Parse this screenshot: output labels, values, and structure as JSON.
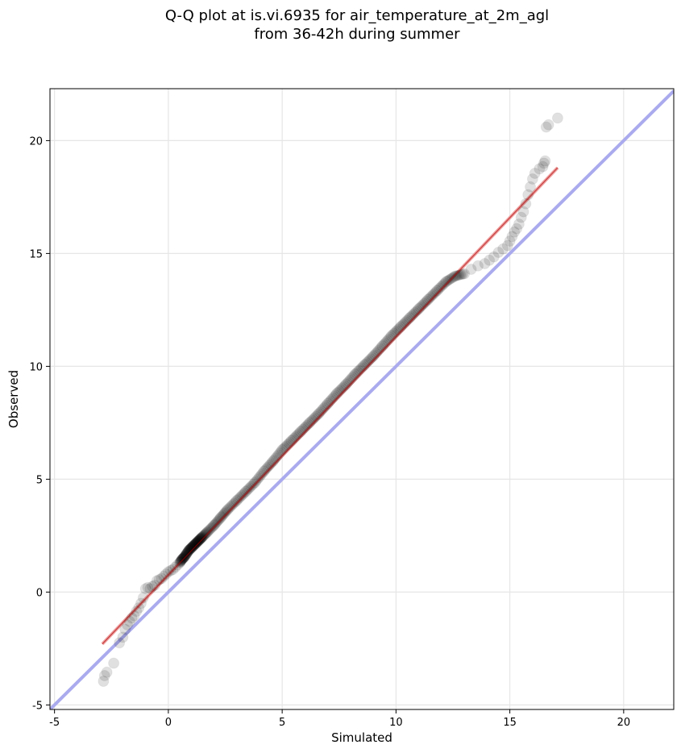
{
  "chart_data": {
    "type": "scatter",
    "title": "Q-Q plot at is.vi.6935 for air_temperature_at_2m_agl",
    "subtitle": "from 36-42h during summer",
    "xlabel": "Simulated",
    "ylabel": "Observed",
    "xlim": [
      -5.2,
      22.2
    ],
    "ylim": [
      -5.2,
      22.3
    ],
    "xticks": [
      -5,
      0,
      5,
      10,
      15,
      20
    ],
    "yticks": [
      -5,
      0,
      5,
      10,
      15,
      20
    ],
    "grid": true,
    "reference_line": {
      "x": [
        -5.2,
        22.2
      ],
      "y": [
        -5.2,
        22.2
      ],
      "color": "#aaaaee"
    },
    "fit_line": {
      "x": [
        -2.9,
        17.1
      ],
      "y": [
        -2.3,
        18.8
      ],
      "color": "#f0a0a0"
    },
    "colors": {
      "points": "#000000",
      "fit_line_core": "#aa0000"
    },
    "points": {
      "x": [
        -2.85,
        -2.8,
        -2.7,
        -2.4,
        -2.15,
        -2.0,
        -1.9,
        -1.8,
        -1.7,
        -1.6,
        -1.5,
        -1.4,
        -1.3,
        -1.2,
        -1.1,
        -1.0,
        -0.9,
        -0.8,
        -0.7,
        -0.6,
        -0.5,
        -0.4,
        -0.3,
        -0.2,
        -0.1,
        0.0,
        0.1,
        0.2,
        0.3,
        0.4,
        0.5,
        0.6,
        0.7,
        0.8,
        0.9,
        1.0,
        1.1,
        1.2,
        1.3,
        1.4,
        1.5,
        1.7,
        2.0,
        2.3,
        2.6,
        3.0,
        3.4,
        3.8,
        4.2,
        4.6,
        5.0,
        5.4,
        5.8,
        6.2,
        6.6,
        7.0,
        7.4,
        7.8,
        8.2,
        8.6,
        9.0,
        9.4,
        9.8,
        10.2,
        10.6,
        11.0,
        11.4,
        11.8,
        12.2,
        12.6,
        13.0,
        13.3,
        13.6,
        13.9,
        14.1,
        14.3,
        14.5,
        14.7,
        14.9,
        15.0,
        15.1,
        15.2,
        15.3,
        15.4,
        15.5,
        15.6,
        15.7,
        15.8,
        15.9,
        16.0,
        16.1,
        16.3,
        16.45,
        16.5,
        16.55,
        16.6,
        16.7,
        17.1
      ],
      "y": [
        -3.95,
        -3.7,
        -3.55,
        -3.15,
        -2.25,
        -2.0,
        -1.65,
        -1.45,
        -1.3,
        -1.15,
        -1.05,
        -0.85,
        -0.7,
        -0.5,
        -0.25,
        0.15,
        0.2,
        0.15,
        0.25,
        0.3,
        0.5,
        0.55,
        0.6,
        0.7,
        0.8,
        0.9,
        0.95,
        1.0,
        1.1,
        1.2,
        1.3,
        1.45,
        1.55,
        1.7,
        1.85,
        1.95,
        2.05,
        2.15,
        2.25,
        2.35,
        2.45,
        2.65,
        2.95,
        3.3,
        3.65,
        4.05,
        4.45,
        4.85,
        5.35,
        5.8,
        6.3,
        6.7,
        7.1,
        7.5,
        7.9,
        8.35,
        8.8,
        9.2,
        9.65,
        10.05,
        10.45,
        10.9,
        11.35,
        11.75,
        12.15,
        12.55,
        12.95,
        13.35,
        13.75,
        14.0,
        14.1,
        14.3,
        14.45,
        14.55,
        14.7,
        14.85,
        15.05,
        15.2,
        15.35,
        15.55,
        15.75,
        15.95,
        16.1,
        16.3,
        16.6,
        16.85,
        17.2,
        17.6,
        17.95,
        18.3,
        18.55,
        18.75,
        18.85,
        19.0,
        19.1,
        20.6,
        20.7,
        21.0
      ]
    }
  }
}
